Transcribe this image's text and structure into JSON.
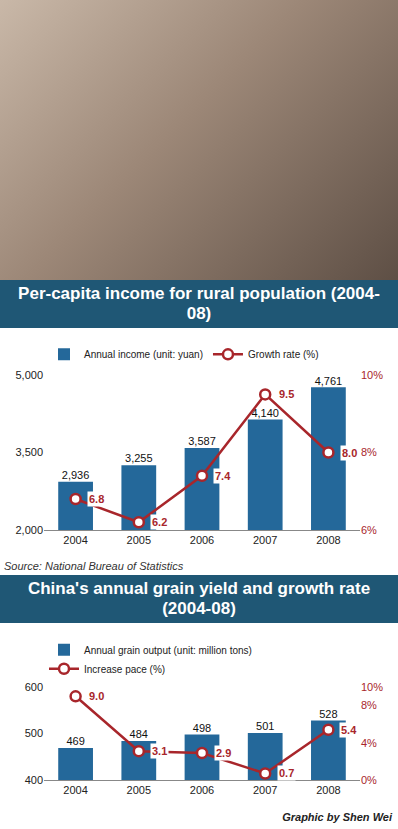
{
  "chart_data": [
    {
      "type": "bar",
      "title": "Per-capita income for rural population (2004-08)",
      "categories": [
        "2004",
        "2005",
        "2006",
        "2007",
        "2008"
      ],
      "series": [
        {
          "name": "Annual income (unit: yuan)",
          "type": "bar",
          "color": "#24689a",
          "values": [
            2936,
            3255,
            3587,
            4140,
            4761
          ],
          "value_labels": [
            "2,936",
            "3,255",
            "3,587",
            "4,140",
            "4,761"
          ]
        },
        {
          "name": "Growth rate (%)",
          "type": "line",
          "axis": "y2",
          "color": "#a8262b",
          "marker": "circle",
          "line_style": "solid",
          "values": [
            6.8,
            6.2,
            7.4,
            9.5,
            8.0
          ],
          "value_labels": [
            "6.8",
            "6.2",
            "7.4",
            "9.5",
            "8.0"
          ]
        }
      ],
      "ylim": [
        2000,
        5000
      ],
      "yticks": [
        {
          "value": 2000,
          "label": "2,000"
        },
        {
          "value": 3500,
          "label": "3,500"
        },
        {
          "value": 5000,
          "label": "5,000"
        }
      ],
      "y2lim": [
        6,
        10
      ],
      "y2ticks": [
        {
          "value": 6,
          "label": "6%"
        },
        {
          "value": 8,
          "label": "8%"
        },
        {
          "value": 10,
          "label": "10%"
        }
      ],
      "grid": false,
      "legend": "top",
      "data_labels": true
    },
    {
      "type": "bar",
      "title": "China's annual grain yield and growth rate (2004-08)",
      "categories": [
        "2004",
        "2005",
        "2006",
        "2007",
        "2008"
      ],
      "series": [
        {
          "name": "Annual grain output (unit: million tons)",
          "type": "bar",
          "color": "#24689a",
          "values": [
            469,
            484,
            498,
            501,
            528
          ]
        },
        {
          "name": "Increase pace (%)",
          "type": "line",
          "axis": "y2",
          "color": "#a8262b",
          "marker": "circle",
          "line_style": "solid",
          "values": [
            9.0,
            3.1,
            2.9,
            0.7,
            5.4
          ],
          "value_labels": [
            "9.0",
            "3.1",
            "2.9",
            "0.7",
            "5.4"
          ]
        }
      ],
      "ylim": [
        400,
        600
      ],
      "yticks": [
        400,
        500,
        600
      ],
      "y2lim": [
        0,
        10
      ],
      "y2ticks": [
        {
          "value": 0,
          "label": "0%"
        },
        {
          "value": 4,
          "label": "4%"
        },
        {
          "value": 8,
          "label": "8%"
        },
        {
          "value": 10,
          "label": "10%"
        }
      ],
      "grid": false,
      "legend": "top",
      "data_labels": true
    }
  ],
  "source": "Source: National Bureau of Statistics",
  "credit": "Graphic by Shen Wei"
}
